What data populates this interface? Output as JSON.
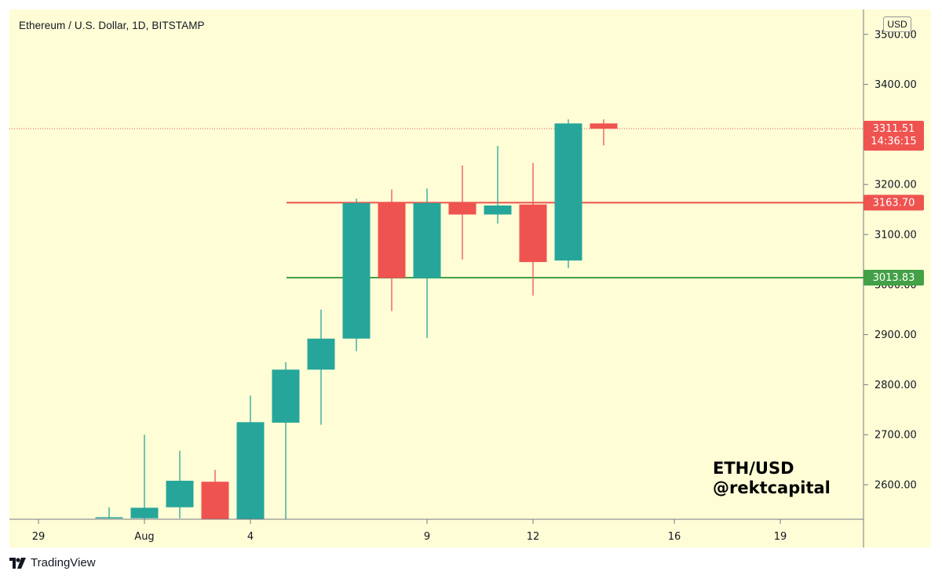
{
  "header": {
    "title": "Ethereum / U.S. Dollar, 1D, BITSTAMP"
  },
  "currency_badge": "USD",
  "watermark": {
    "line1": "ETH/USD",
    "line2": "@rektcapital"
  },
  "footer": {
    "brand": "TradingView",
    "logo_icon": "tradingview-logo-icon"
  },
  "colors": {
    "background": "#fefdd6",
    "up": "#26a69a",
    "down": "#ef5350",
    "resistance": "#ef5350",
    "support": "#43a047",
    "axis": "#787b86"
  },
  "chart_data": {
    "type": "candlestick",
    "title": "Ethereum / U.S. Dollar, 1D, BITSTAMP",
    "y_unit": "USD",
    "ylim": [
      2535,
      3550
    ],
    "y_ticks": [
      "2600.00",
      "2700.00",
      "2800.00",
      "2900.00",
      "3000.00",
      "3100.00",
      "3200.00",
      "3300.00",
      "3400.00",
      "3500.00"
    ],
    "x_ticks": [
      {
        "label": "29",
        "index": -6
      },
      {
        "label": "Aug",
        "index": -3
      },
      {
        "label": "4",
        "index": 0
      },
      {
        "label": "9",
        "index": 5
      },
      {
        "label": "12",
        "index": 8
      },
      {
        "label": "16",
        "index": 12
      },
      {
        "label": "19",
        "index": 15
      }
    ],
    "candles": [
      {
        "date": "Jul 31",
        "open": 2535,
        "high": 2555,
        "low": 2535,
        "close": 2535
      },
      {
        "date": "Aug 1",
        "open": 2533,
        "high": 2700,
        "low": 2510,
        "close": 2554
      },
      {
        "date": "Aug 2",
        "open": 2555,
        "high": 2668,
        "low": 2533,
        "close": 2608
      },
      {
        "date": "Aug 3",
        "open": 2606,
        "high": 2630,
        "low": 2505,
        "close": 2515
      },
      {
        "date": "Aug 4",
        "open": 2515,
        "high": 2778,
        "low": 2505,
        "close": 2725
      },
      {
        "date": "Aug 5",
        "open": 2724,
        "high": 2845,
        "low": 2525,
        "close": 2830
      },
      {
        "date": "Aug 6",
        "open": 2830,
        "high": 2950,
        "low": 2720,
        "close": 2892
      },
      {
        "date": "Aug 7",
        "open": 2892,
        "high": 3172,
        "low": 2867,
        "close": 3163
      },
      {
        "date": "Aug 8",
        "open": 3163,
        "high": 3190,
        "low": 2947,
        "close": 3013
      },
      {
        "date": "Aug 9",
        "open": 3013,
        "high": 3192,
        "low": 2893,
        "close": 3163
      },
      {
        "date": "Aug 10",
        "open": 3163,
        "high": 3238,
        "low": 3050,
        "close": 3140
      },
      {
        "date": "Aug 11",
        "open": 3140,
        "high": 3277,
        "low": 3122,
        "close": 3158
      },
      {
        "date": "Aug 12",
        "open": 3160,
        "high": 3243,
        "low": 2978,
        "close": 3045
      },
      {
        "date": "Aug 13",
        "open": 3048,
        "high": 3330,
        "low": 3033,
        "close": 3322
      },
      {
        "date": "Aug 14",
        "open": 3322,
        "high": 3330,
        "low": 3278,
        "close": 3311.51
      }
    ],
    "horizontal_levels": [
      {
        "label": "3163.70",
        "value": 3163.7,
        "color": "#ef5350"
      },
      {
        "label": "3013.83",
        "value": 3013.83,
        "color": "#43a047"
      }
    ],
    "current_price": {
      "label": "3311.51",
      "value": 3311.51,
      "countdown": "14:36:15",
      "color": "#ef5350"
    }
  }
}
